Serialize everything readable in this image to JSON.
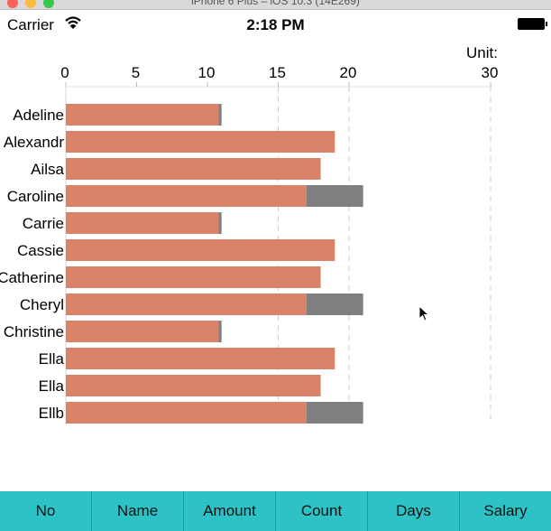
{
  "window": {
    "title": "iPhone 6 Plus – iOS 10.3 (14E269)"
  },
  "status_bar": {
    "carrier": "Carrier",
    "time": "2:18 PM"
  },
  "chart_data": {
    "type": "bar",
    "orientation": "horizontal",
    "stacked": true,
    "categories": [
      "Adeline",
      "Alexandr",
      "Ailsa",
      "Caroline",
      "Carrie",
      "Cassie",
      "Catherine",
      "Cheryl",
      "Christine",
      "Ella",
      "Ella",
      "Ellb"
    ],
    "series": [
      {
        "color": "#d8826a",
        "values": [
          10.8,
          19,
          18,
          17,
          10.8,
          19,
          18,
          17,
          10.8,
          19,
          18,
          17
        ]
      },
      {
        "color": "#808080",
        "values": [
          0.2,
          0,
          0,
          4,
          0.2,
          0,
          0,
          4,
          0.2,
          0,
          0,
          4
        ]
      }
    ],
    "unit_label": "Unit:",
    "xlim": [
      0,
      30
    ],
    "xticks": [
      0,
      5,
      10,
      15,
      20,
      30
    ],
    "gridlines_dashed": [
      15,
      20,
      30
    ]
  },
  "tabbar": {
    "tabs": [
      {
        "label": "No"
      },
      {
        "label": "Name"
      },
      {
        "label": "Amount"
      },
      {
        "label": "Count"
      },
      {
        "label": "Days"
      },
      {
        "label": "Salary"
      }
    ]
  }
}
